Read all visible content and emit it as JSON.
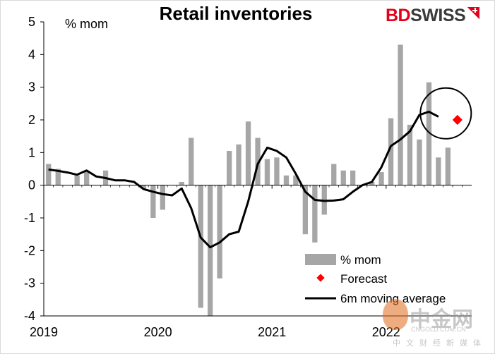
{
  "chart_data": {
    "type": "bar",
    "title": "Retail inventories",
    "ylabel": "% mom",
    "ylim": [
      -4,
      5
    ],
    "yticks": [
      "5",
      "4",
      "3",
      "2",
      "1",
      "0",
      "-1",
      "-2",
      "-3",
      "-4"
    ],
    "xticks": [
      "2019",
      "2020",
      "2021",
      "2022"
    ],
    "months": [
      "2019-01",
      "2019-02",
      "2019-03",
      "2019-04",
      "2019-05",
      "2019-06",
      "2019-07",
      "2019-08",
      "2019-09",
      "2019-10",
      "2019-11",
      "2019-12",
      "2020-01",
      "2020-02",
      "2020-03",
      "2020-04",
      "2020-05",
      "2020-06",
      "2020-07",
      "2020-08",
      "2020-09",
      "2020-10",
      "2020-11",
      "2020-12",
      "2021-01",
      "2021-02",
      "2021-03",
      "2021-04",
      "2021-05",
      "2021-06",
      "2021-07",
      "2021-08",
      "2021-09",
      "2021-10",
      "2021-11",
      "2021-12",
      "2022-01",
      "2022-02",
      "2022-03",
      "2022-04",
      "2022-05",
      "2022-06",
      "2022-07",
      "2022-08"
    ],
    "series": [
      {
        "name": "% mom",
        "type": "bar",
        "color": "#a6a6a6",
        "values": [
          0.65,
          0.5,
          0.0,
          0.3,
          0.45,
          0.0,
          0.45,
          0.0,
          0.0,
          0.0,
          -0.1,
          -1.0,
          -0.75,
          0.0,
          0.1,
          1.45,
          -3.75,
          -4.0,
          -2.85,
          1.05,
          1.25,
          1.95,
          1.45,
          0.8,
          0.85,
          0.3,
          0.3,
          -1.5,
          -1.75,
          -0.9,
          0.65,
          0.45,
          0.45,
          0.0,
          0.1,
          0.4,
          2.05,
          4.3,
          1.85,
          1.4,
          3.15,
          0.85,
          1.15,
          null
        ]
      },
      {
        "name": "Forecast",
        "type": "point",
        "color": "#ff0000",
        "month": "2022-08",
        "value": 2.0
      },
      {
        "name": "6m moving average",
        "type": "line",
        "color": "#000000",
        "values": [
          0.48,
          0.44,
          0.39,
          0.32,
          0.45,
          0.27,
          0.22,
          0.15,
          0.15,
          0.1,
          -0.12,
          -0.2,
          -0.27,
          -0.31,
          -0.1,
          -0.7,
          -1.6,
          -1.9,
          -1.75,
          -1.5,
          -1.42,
          -0.5,
          0.65,
          1.15,
          1.05,
          0.85,
          0.35,
          -0.2,
          -0.45,
          -0.48,
          -0.47,
          -0.43,
          -0.2,
          0.0,
          0.1,
          0.55,
          1.2,
          1.4,
          1.65,
          2.15,
          2.25,
          2.1,
          null,
          null
        ]
      }
    ],
    "legend": {
      "placement": "bottom-right",
      "items": [
        "% mom",
        "Forecast",
        "6m moving average"
      ]
    },
    "annotation": "circle around latest values and forecast",
    "grid": false
  },
  "branding": {
    "logo_red": "BD",
    "logo_dark": "SWISS",
    "watermark_cn": "中金网",
    "watermark_url": "CNGOLD.COM.CN",
    "watermark_sub": "中文财经新媒体"
  }
}
